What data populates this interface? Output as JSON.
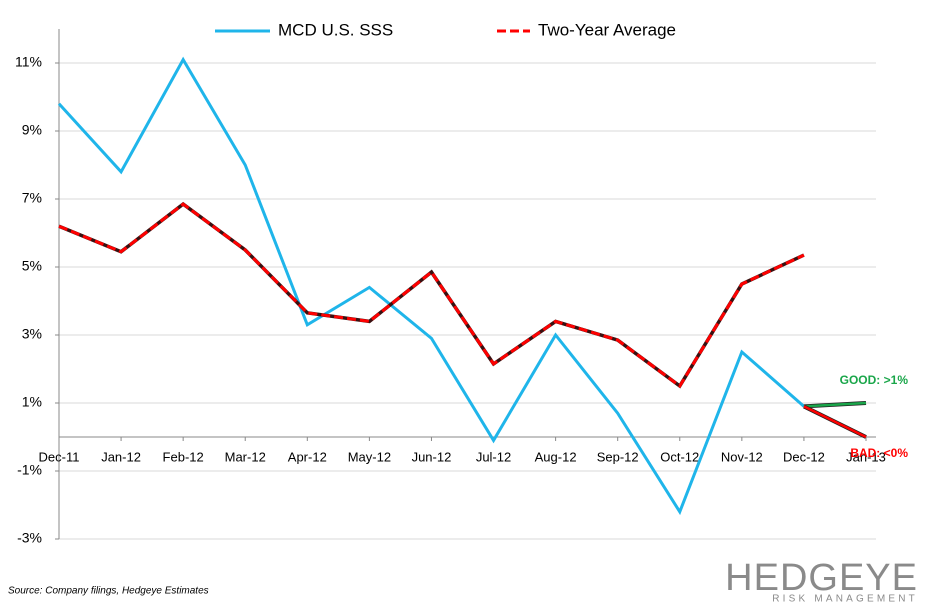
{
  "chart_data": {
    "type": "line",
    "categories": [
      "Dec-11",
      "Jan-12",
      "Feb-12",
      "Mar-12",
      "Apr-12",
      "May-12",
      "Jun-12",
      "Jul-12",
      "Aug-12",
      "Sep-12",
      "Oct-12",
      "Nov-12",
      "Dec-12",
      "Jan-13"
    ],
    "series": [
      {
        "name": "MCD U.S. SSS",
        "color": "#1fb5ea",
        "values": [
          9.8,
          7.8,
          11.1,
          8.0,
          3.3,
          4.4,
          2.9,
          -0.1,
          3.0,
          0.7,
          -2.2,
          2.5,
          0.9,
          null
        ]
      },
      {
        "name": "Two-Year Average",
        "color": "#ff0000",
        "values": [
          6.2,
          5.45,
          6.85,
          5.5,
          3.65,
          3.4,
          4.85,
          2.15,
          3.4,
          2.85,
          1.5,
          4.5,
          5.35,
          null
        ]
      }
    ],
    "annotations": [
      {
        "text": "GOOD: >1%",
        "color": "#1aa64a",
        "values": [
          null,
          null,
          null,
          null,
          null,
          null,
          null,
          null,
          null,
          null,
          null,
          null,
          0.9,
          1.0
        ]
      },
      {
        "text": "BAD: <0%",
        "color": "#ff0000",
        "values": [
          null,
          null,
          null,
          null,
          null,
          null,
          null,
          null,
          null,
          null,
          null,
          null,
          0.9,
          0.0
        ]
      }
    ],
    "ylim": [
      -3,
      12
    ],
    "yticks": [
      {
        "value": -3,
        "label": "-3%"
      },
      {
        "value": -1,
        "label": "-1%"
      },
      {
        "value": 1,
        "label": "1%"
      },
      {
        "value": 3,
        "label": "3%"
      },
      {
        "value": 5,
        "label": "5%"
      },
      {
        "value": 7,
        "label": "7%"
      },
      {
        "value": 9,
        "label": "9%"
      },
      {
        "value": 11,
        "label": "11%"
      }
    ],
    "grid": true,
    "legend": "top",
    "source": "Source: Company filings, Hedgeye Estimates",
    "logo": {
      "name": "HEDGEYE",
      "tagline": "RISK MANAGEMENT"
    }
  }
}
